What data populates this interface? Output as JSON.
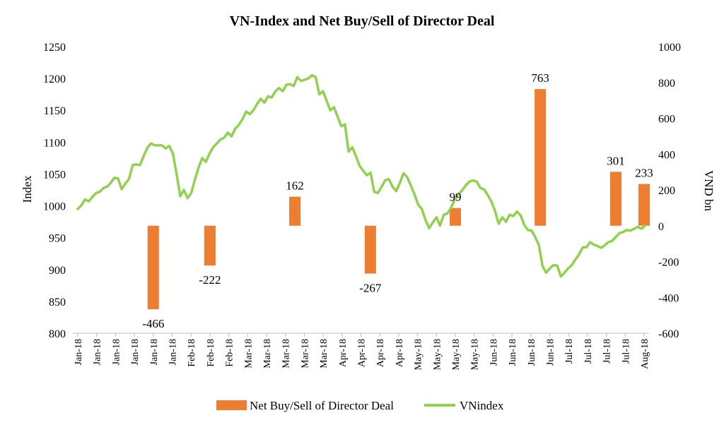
{
  "chart_data": {
    "type": "bar+line",
    "title": "VN-Index and Net Buy/Sell of Director Deal",
    "ylabel_left": "Index",
    "ylabel_right": "VND bn",
    "ylim_left": [
      800,
      1250
    ],
    "ylim_right": [
      -600,
      1000
    ],
    "yticks_left": [
      "800",
      "850",
      "900",
      "950",
      "1000",
      "1050",
      "1100",
      "1150",
      "1200",
      "1250"
    ],
    "yticks_right": [
      "-600",
      "-400",
      "-200",
      "0",
      "200",
      "400",
      "600",
      "800",
      "1000"
    ],
    "x_tick_labels": [
      "Jan-18",
      "Jan-18",
      "Jan-18",
      "Jan-18",
      "Jan-18",
      "Jan-18",
      "Feb-18",
      "Feb-18",
      "Feb-18",
      "Mar-18",
      "Mar-18",
      "Mar-18",
      "Mar-18",
      "Mar-18",
      "Apr-18",
      "Apr-18",
      "Apr-18",
      "Apr-18",
      "May-18",
      "May-18",
      "May-18",
      "May-18",
      "Jun-18",
      "Jun-18",
      "Jun-18",
      "Jun-18",
      "Jul-18",
      "Jul-18",
      "Jul-18",
      "Jul-18",
      "Aug-18"
    ],
    "bars": {
      "name": "Net Buy/Sell of Director Deal",
      "color": "#ED7D31",
      "points": [
        {
          "x": 4,
          "value": -466,
          "label": "-466"
        },
        {
          "x": 7,
          "value": -222,
          "label": "-222"
        },
        {
          "x": 11.5,
          "value": 162,
          "label": "162"
        },
        {
          "x": 15.5,
          "value": -267,
          "label": "-267"
        },
        {
          "x": 20,
          "value": 99,
          "label": "99"
        },
        {
          "x": 24.5,
          "value": 763,
          "label": "763"
        },
        {
          "x": 28.5,
          "value": 301,
          "label": "301"
        },
        {
          "x": 30,
          "value": 233,
          "label": "233"
        }
      ]
    },
    "line": {
      "name": "VNindex",
      "color": "#92D050",
      "x_start": 0,
      "x_end": 30.05,
      "values": [
        995,
        1001,
        1010,
        1007,
        1014,
        1020,
        1022,
        1028,
        1030,
        1036,
        1044,
        1043,
        1026,
        1035,
        1042,
        1064,
        1065,
        1064,
        1078,
        1091,
        1098,
        1095,
        1095,
        1095,
        1090,
        1094,
        1082,
        1050,
        1015,
        1025,
        1012,
        1020,
        1041,
        1060,
        1075,
        1069,
        1082,
        1092,
        1098,
        1104,
        1107,
        1115,
        1109,
        1121,
        1127,
        1136,
        1148,
        1144,
        1150,
        1160,
        1168,
        1162,
        1172,
        1170,
        1180,
        1185,
        1180,
        1190,
        1191,
        1188,
        1202,
        1196,
        1198,
        1200,
        1205,
        1202,
        1175,
        1180,
        1165,
        1150,
        1155,
        1140,
        1125,
        1128,
        1085,
        1092,
        1078,
        1063,
        1055,
        1048,
        1052,
        1022,
        1020,
        1030,
        1040,
        1042,
        1030,
        1023,
        1036,
        1051,
        1045,
        1032,
        1018,
        1002,
        995,
        978,
        965,
        974,
        982,
        969,
        986,
        988,
        997,
        1010,
        1018,
        1024,
        1032,
        1038,
        1040,
        1038,
        1028,
        1026,
        1017,
        1007,
        992,
        972,
        982,
        975,
        986,
        984,
        991,
        985,
        970,
        962,
        961,
        951,
        938,
        905,
        895,
        902,
        907,
        906,
        889,
        895,
        902,
        907,
        916,
        924,
        935,
        935,
        943,
        939,
        937,
        934,
        938,
        943,
        945,
        951,
        957,
        959,
        962,
        961,
        964,
        967,
        964,
        969
      ]
    },
    "legend": "bottom"
  }
}
